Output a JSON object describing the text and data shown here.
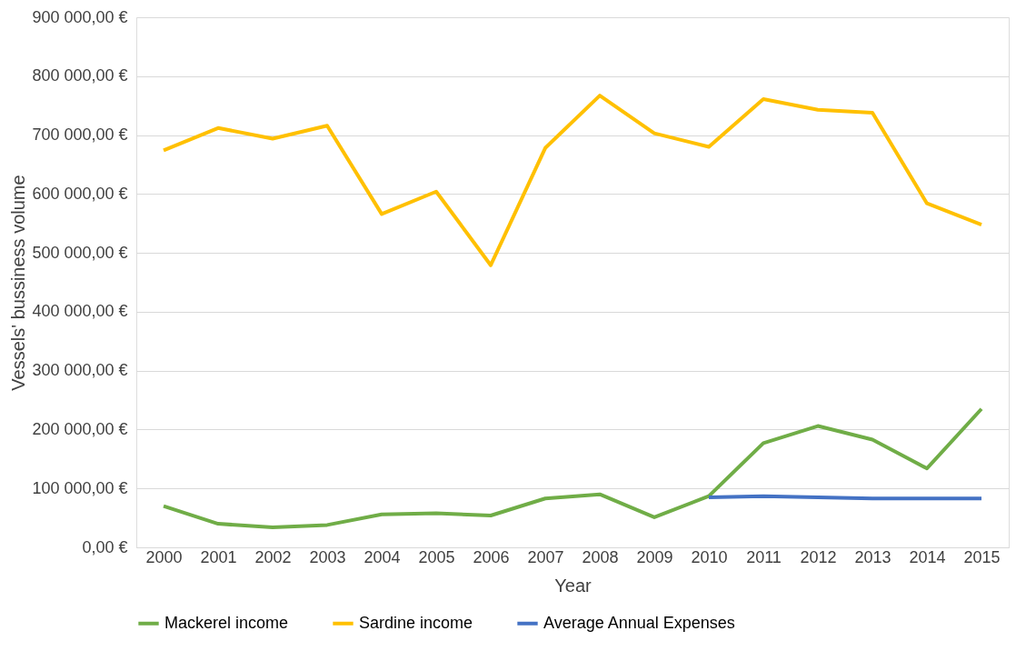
{
  "chart_data": {
    "type": "line",
    "xlabel": "Year",
    "ylabel": "Vessels' bussiness volume",
    "categories": [
      "2000",
      "2001",
      "2002",
      "2003",
      "2004",
      "2005",
      "2006",
      "2007",
      "2008",
      "2009",
      "2010",
      "2011",
      "2012",
      "2013",
      "2014",
      "2015"
    ],
    "series": [
      {
        "name": "Mackerel income",
        "color": "#70ad47",
        "values": [
          70000,
          40000,
          34000,
          38000,
          56000,
          58000,
          54000,
          83000,
          90000,
          51000,
          87000,
          177000,
          206000,
          183000,
          134000,
          235000
        ]
      },
      {
        "name": "Sardine income",
        "color": "#ffc000",
        "values": [
          674000,
          712000,
          694000,
          716000,
          566000,
          604000,
          479000,
          678000,
          767000,
          703000,
          680000,
          761000,
          743000,
          738000,
          584000,
          548000
        ]
      },
      {
        "name": "Average Annual Expenses",
        "color": "#4472c4",
        "values": [
          null,
          null,
          null,
          null,
          null,
          null,
          null,
          null,
          null,
          null,
          85000,
          87000,
          85000,
          83000,
          83000,
          83000
        ]
      }
    ],
    "ylim": [
      0,
      900000
    ],
    "yticks": [
      {
        "value": 0,
        "label": "0,00 €"
      },
      {
        "value": 100000,
        "label": "100 000,00 €"
      },
      {
        "value": 200000,
        "label": "200 000,00 €"
      },
      {
        "value": 300000,
        "label": "300 000,00 €"
      },
      {
        "value": 400000,
        "label": "400 000,00 €"
      },
      {
        "value": 500000,
        "label": "500 000,00 €"
      },
      {
        "value": 600000,
        "label": "600 000,00 €"
      },
      {
        "value": 700000,
        "label": "700 000,00 €"
      },
      {
        "value": 800000,
        "label": "800 000,00 €"
      },
      {
        "value": 900000,
        "label": "900 000,00 €"
      }
    ],
    "grid": "y",
    "legend": "bottom",
    "marker": "none",
    "line_style": "solid"
  }
}
